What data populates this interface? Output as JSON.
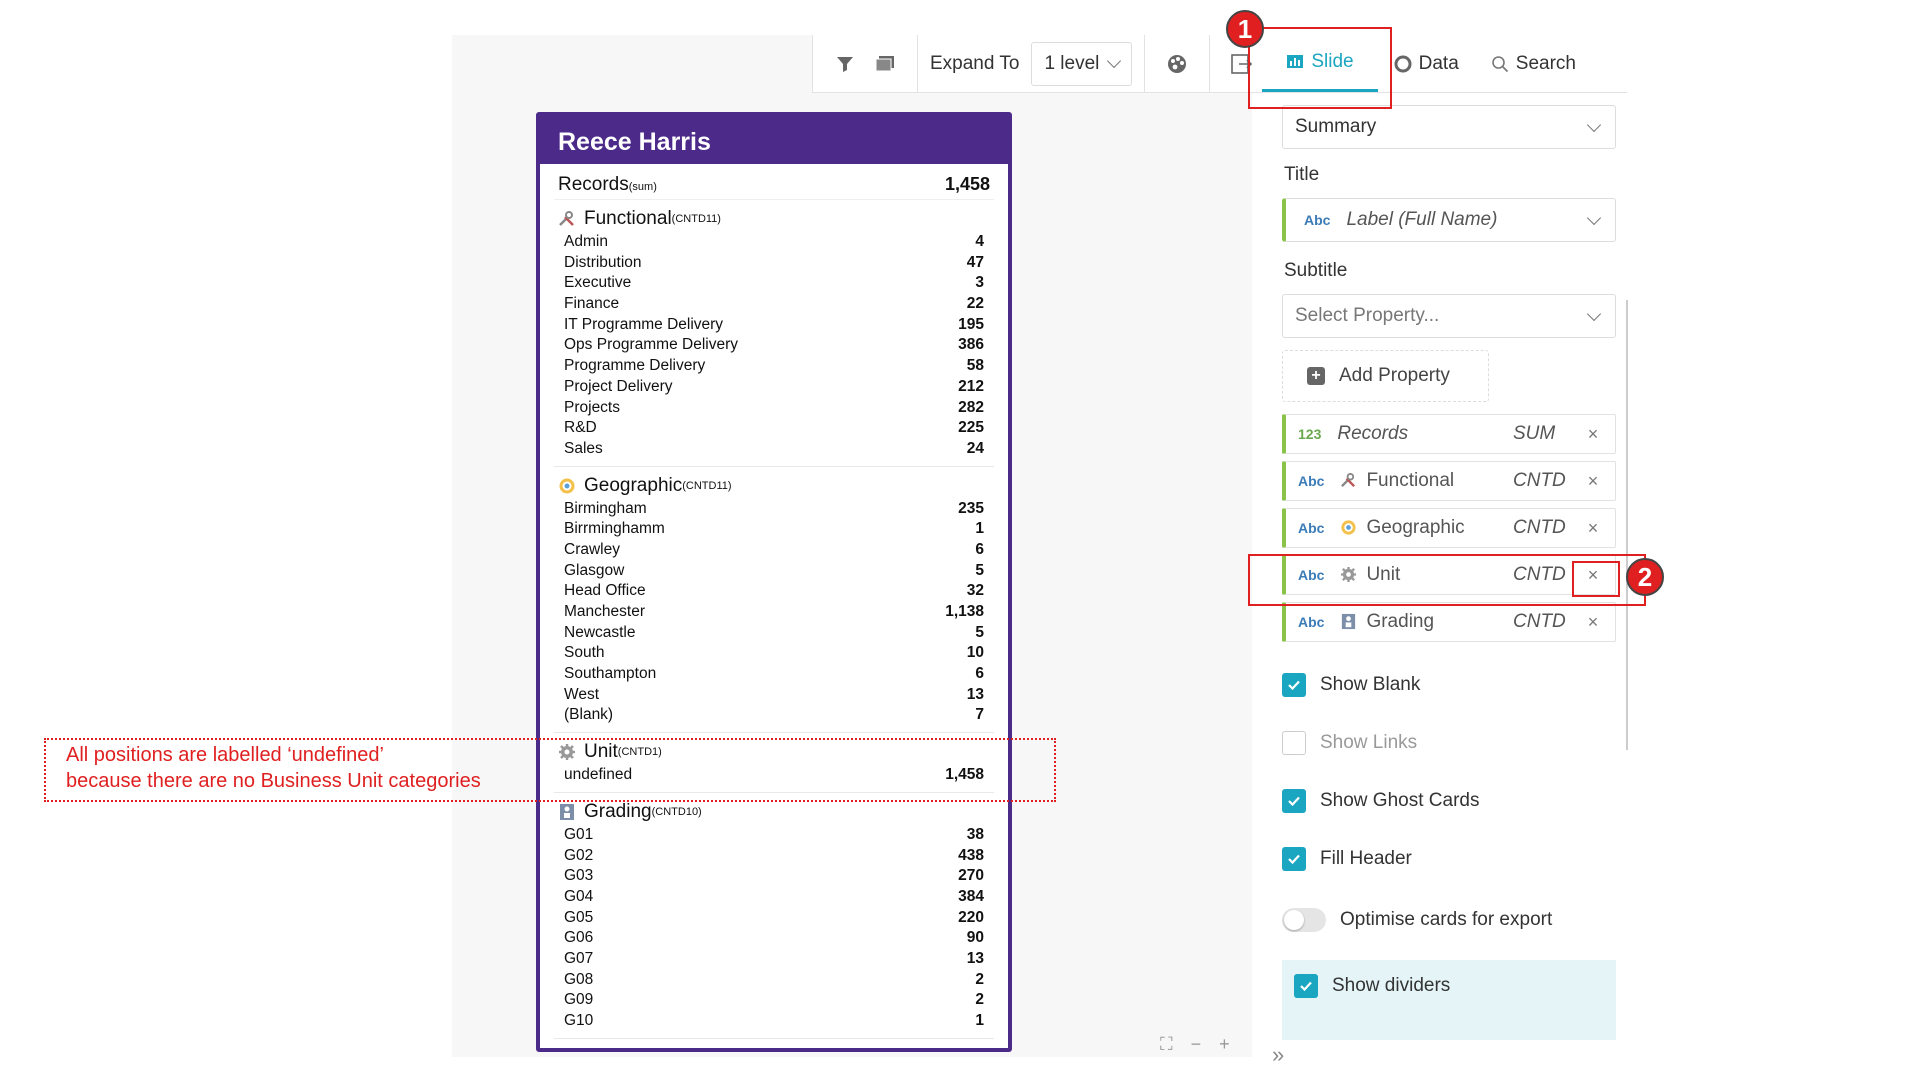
{
  "toolbar": {
    "expand_label": "Expand To",
    "level_value": "1 level",
    "tabs": [
      {
        "label": "Slide",
        "active": true
      },
      {
        "label": "Data",
        "active": false
      },
      {
        "label": "Search",
        "active": false
      }
    ]
  },
  "card": {
    "title": "Reece Harris",
    "records": {
      "label": "Records",
      "sub": "(sum)",
      "value": "1,458"
    },
    "sections": [
      {
        "title": "Functional",
        "sub": "(CNTD11)",
        "icon": "tools-icon",
        "items": [
          [
            "Admin",
            "4"
          ],
          [
            "Distribution",
            "47"
          ],
          [
            "Executive",
            "3"
          ],
          [
            "Finance",
            "22"
          ],
          [
            "IT Programme Delivery",
            "195"
          ],
          [
            "Ops Programme Delivery",
            "386"
          ],
          [
            "Programme Delivery",
            "58"
          ],
          [
            "Project Delivery",
            "212"
          ],
          [
            "Projects",
            "282"
          ],
          [
            "R&D",
            "225"
          ],
          [
            "Sales",
            "24"
          ]
        ]
      },
      {
        "title": "Geographic",
        "sub": "(CNTD11)",
        "icon": "globe-icon",
        "items": [
          [
            "Birmingham",
            "235"
          ],
          [
            "Birrminghamm",
            "1"
          ],
          [
            "Crawley",
            "6"
          ],
          [
            "Glasgow",
            "5"
          ],
          [
            "Head Office",
            "32"
          ],
          [
            "Manchester",
            "1,138"
          ],
          [
            "Newcastle",
            "5"
          ],
          [
            "South",
            "10"
          ],
          [
            "Southampton",
            "6"
          ],
          [
            "West",
            "13"
          ],
          [
            "(Blank)",
            "7"
          ]
        ]
      },
      {
        "title": "Unit",
        "sub": "(CNTD1)",
        "icon": "gear-icon",
        "items": [
          [
            "undefined",
            "1,458"
          ]
        ]
      },
      {
        "title": "Grading",
        "sub": "(CNTD10)",
        "icon": "grading-icon",
        "items": [
          [
            "G01",
            "38"
          ],
          [
            "G02",
            "438"
          ],
          [
            "G03",
            "270"
          ],
          [
            "G04",
            "384"
          ],
          [
            "G05",
            "220"
          ],
          [
            "G06",
            "90"
          ],
          [
            "G07",
            "13"
          ],
          [
            "G08",
            "2"
          ],
          [
            "G09",
            "2"
          ],
          [
            "G10",
            "1"
          ]
        ]
      }
    ]
  },
  "annotation": {
    "line1": "All positions are labelled ‘undefined’",
    "line2": "because there are no Business Unit categories"
  },
  "markers": {
    "one": "1",
    "two": "2"
  },
  "panel": {
    "summary_value": "Summary",
    "title_label": "Title",
    "title_value": "Label (Full Name)",
    "subtitle_label": "Subtitle",
    "subtitle_placeholder": "Select Property...",
    "add_property": "Add Property",
    "properties": [
      {
        "type": "123",
        "name": "Records",
        "agg": "SUM",
        "icon": "none"
      },
      {
        "type": "Abc",
        "name": "Functional",
        "agg": "CNTD",
        "icon": "tools-icon"
      },
      {
        "type": "Abc",
        "name": "Geographic",
        "agg": "CNTD",
        "icon": "globe-icon"
      },
      {
        "type": "Abc",
        "name": "Unit",
        "agg": "CNTD",
        "icon": "gear-icon"
      },
      {
        "type": "Abc",
        "name": "Grading",
        "agg": "CNTD",
        "icon": "grading-icon"
      }
    ],
    "remove_symbol": "×",
    "options": [
      {
        "label": "Show Blank",
        "checked": true
      },
      {
        "label": "Show Links",
        "checked": false
      },
      {
        "label": "Show Ghost Cards",
        "checked": true
      },
      {
        "label": "Fill Header",
        "checked": true
      },
      {
        "label": "Optimise cards for export",
        "checked": false
      },
      {
        "label": "Show dividers",
        "checked": true
      }
    ]
  },
  "colors": {
    "accent": "#1aa6c0",
    "card": "#4b2a8a",
    "annotation": "#e02020",
    "prop_bar": "#8bc34a"
  }
}
